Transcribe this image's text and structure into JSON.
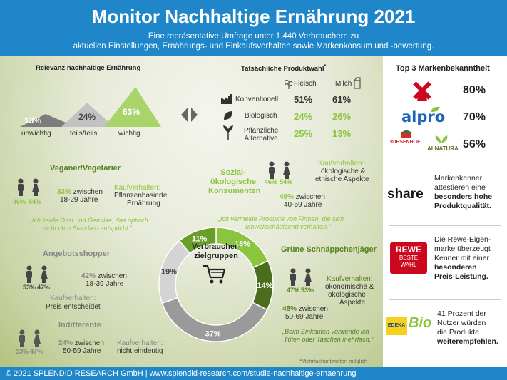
{
  "header": {
    "title": "Monitor Nachhaltige Ernährung 2021",
    "subtitle_line1": "Eine repräsentative Umfrage unter 1.440 Verbrauchern zu",
    "subtitle_line2": "aktuellen Einstellungen, Ernährungs- und Einkaufsverhalten sowie Markenkonsum und -bewertung."
  },
  "relevance": {
    "title": "Relevanz nachhaltige Ernährung",
    "items": [
      {
        "value": "13%",
        "label": "unwichtig"
      },
      {
        "value": "24%",
        "label": "teils/teils"
      },
      {
        "value": "63%",
        "label": "wichtig"
      }
    ]
  },
  "product_choice": {
    "title": "Tatsächliche Produktwahl",
    "title_mark": "*",
    "col_meat": "Fleisch",
    "col_milk": "Milch",
    "rows": [
      {
        "label": "Konventionell",
        "meat": "51%",
        "milk": "61%"
      },
      {
        "label": "Biologisch",
        "meat": "24%",
        "milk": "26%"
      },
      {
        "label_line1": "Pflanzliche",
        "label_line2": "Alternative",
        "meat": "25%",
        "milk": "13%"
      }
    ]
  },
  "veganer": {
    "title": "Veganer/Vegetarier",
    "female": "46%",
    "male": "54%",
    "age_pct": "33%",
    "age_text": "zwischen",
    "age_range": "18-29 Jahre",
    "buy_title": "Kaufverhalten:",
    "buy_line1": "Pflanzenbasierte",
    "buy_line2": "Ernährung",
    "quote_line1": "„Ich kaufe Obst und Gemüse, das optisch",
    "quote_line2": "nicht dem Standard entspricht.“"
  },
  "sozial": {
    "title_line1": "Sozial-",
    "title_line2": "ökologische",
    "title_line3": "Konsumenten",
    "female": "46%",
    "male": "54%",
    "buy_title": "Kaufverhalten:",
    "buy_line1": "ökologische &",
    "buy_line2": "ethische Aspekte",
    "age_pct": "49%",
    "age_text": "zwischen",
    "age_range": "40-59 Jahre",
    "quote_line1": "„Ich vermeide Produkte von Firmen, die sich",
    "quote_line2": "umweltschädigend verhalten.“"
  },
  "angebot": {
    "title": "Angebotsshopper",
    "female": "53%",
    "male": "47%",
    "age_pct": "42%",
    "age_text": "zwischen",
    "age_range": "18-39 Jahre",
    "buy_title": "Kaufverhalten:",
    "buy_line1": "Preis entscheidet"
  },
  "indifferent": {
    "title": "Indifferente",
    "female": "53%",
    "male": "47%",
    "age_pct": "24%",
    "age_text": "zwischen",
    "age_range": "50-59 Jahre",
    "buy_title": "Kaufverhalten:",
    "buy_line1": "nicht eindeutig"
  },
  "gruen": {
    "title": "Grüne Schnäppchenjäger",
    "female": "47%",
    "male": "53%",
    "buy_title": "Kaufverhalten:",
    "buy_line1": "ökonomische &",
    "buy_line2": "ökologische",
    "buy_line3": "Aspekte",
    "age_pct": "48%",
    "age_text": "zwischen",
    "age_range": "50-69 Jahre",
    "quote_line1": "„Beim Einkaufen verwende ich",
    "quote_line2": "Tüten oder Taschen mehrfach.“"
  },
  "donut": {
    "center_line1": "Verbraucher-",
    "center_line2": "zielgruppen",
    "segments": [
      {
        "value": 18,
        "label": "18%",
        "color": "#8bc53f"
      },
      {
        "value": 14,
        "label": "14%",
        "color": "#4b6e1e"
      },
      {
        "value": 37,
        "label": "37%",
        "color": "#9a9a9a"
      },
      {
        "value": 19,
        "label": "19%",
        "color": "#d4d4d4"
      },
      {
        "value": 11,
        "label": "11%",
        "color": "#6a9e2b"
      }
    ]
  },
  "footnote": "*Mehrfachantworten möglich",
  "sidebar": {
    "top3_title": "Top 3 Markenbekanntheit",
    "brands": [
      {
        "name": "Rewe",
        "value": "80%"
      },
      {
        "name": "alpro",
        "value": "70%"
      },
      {
        "name_1": "WIESENHOF",
        "name_2": "ALNATURA",
        "value": "56%"
      }
    ],
    "share_logo": "share",
    "share_line1": "Markenkenner",
    "share_line2": "attestieren eine",
    "share_bold1": "besonders hohe",
    "share_bold2": "Produktqualität.",
    "rewe_logo1": "REWE",
    "rewe_logo2": "BESTE",
    "rewe_logo3": "WAHL",
    "rewe_line1": "Die Rewe-Eigen-",
    "rewe_line2": "marke überzeugt",
    "rewe_line3": "Kenner mit einer",
    "rewe_bold1": "besonderen",
    "rewe_bold2": "Preis-Leistung.",
    "edeka_logo1": "EDEKA",
    "edeka_logo2": "Bio",
    "edeka_line1": "41 Prozent der",
    "edeka_line2": "Nutzer würden",
    "edeka_line3": "die Produkte",
    "edeka_bold": "weiterempfehlen."
  },
  "footer": "© 2021 SPLENDID RESEARCH GmbH | www.splendid-research.com/studie-nachhaltige-ernaehrung"
}
